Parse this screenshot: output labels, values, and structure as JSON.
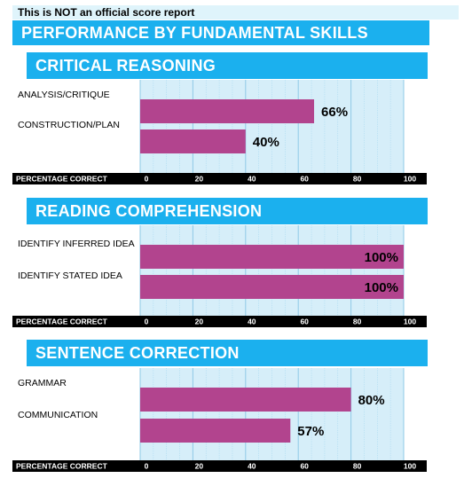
{
  "notice": "This is NOT an official score report",
  "title": "PERFORMANCE BY FUNDAMENTAL SKILLS",
  "colors": {
    "header": "#1bb0ee",
    "bar": "#b2448e",
    "plot_bg": "#d6eef9",
    "grid": "#a9d9f0"
  },
  "chart_data": [
    {
      "type": "bar",
      "orientation": "horizontal",
      "title": "CRITICAL REASONING",
      "categories": [
        "ANALYSIS/CRITIQUE",
        "CONSTRUCTION/PLAN"
      ],
      "values": [
        66,
        40
      ],
      "value_labels": [
        "66%",
        "40%"
      ],
      "xlabel": "PERCENTAGE CORRECT",
      "xlim": [
        0,
        100
      ],
      "ticks": [
        "0",
        "20",
        "40",
        "60",
        "80",
        "100"
      ],
      "grid": true
    },
    {
      "type": "bar",
      "orientation": "horizontal",
      "title": "READING COMPREHENSION",
      "categories": [
        "IDENTIFY INFERRED IDEA",
        "IDENTIFY STATED IDEA"
      ],
      "values": [
        100,
        100
      ],
      "value_labels": [
        "100%",
        "100%"
      ],
      "xlabel": "PERCENTAGE CORRECT",
      "xlim": [
        0,
        100
      ],
      "ticks": [
        "0",
        "20",
        "40",
        "60",
        "80",
        "100"
      ],
      "grid": true
    },
    {
      "type": "bar",
      "orientation": "horizontal",
      "title": "SENTENCE CORRECTION",
      "categories": [
        "GRAMMAR",
        "COMMUNICATION"
      ],
      "values": [
        80,
        57
      ],
      "value_labels": [
        "80%",
        "57%"
      ],
      "xlabel": "PERCENTAGE CORRECT",
      "xlim": [
        0,
        100
      ],
      "ticks": [
        "0",
        "20",
        "40",
        "60",
        "80",
        "100"
      ],
      "grid": true
    }
  ]
}
